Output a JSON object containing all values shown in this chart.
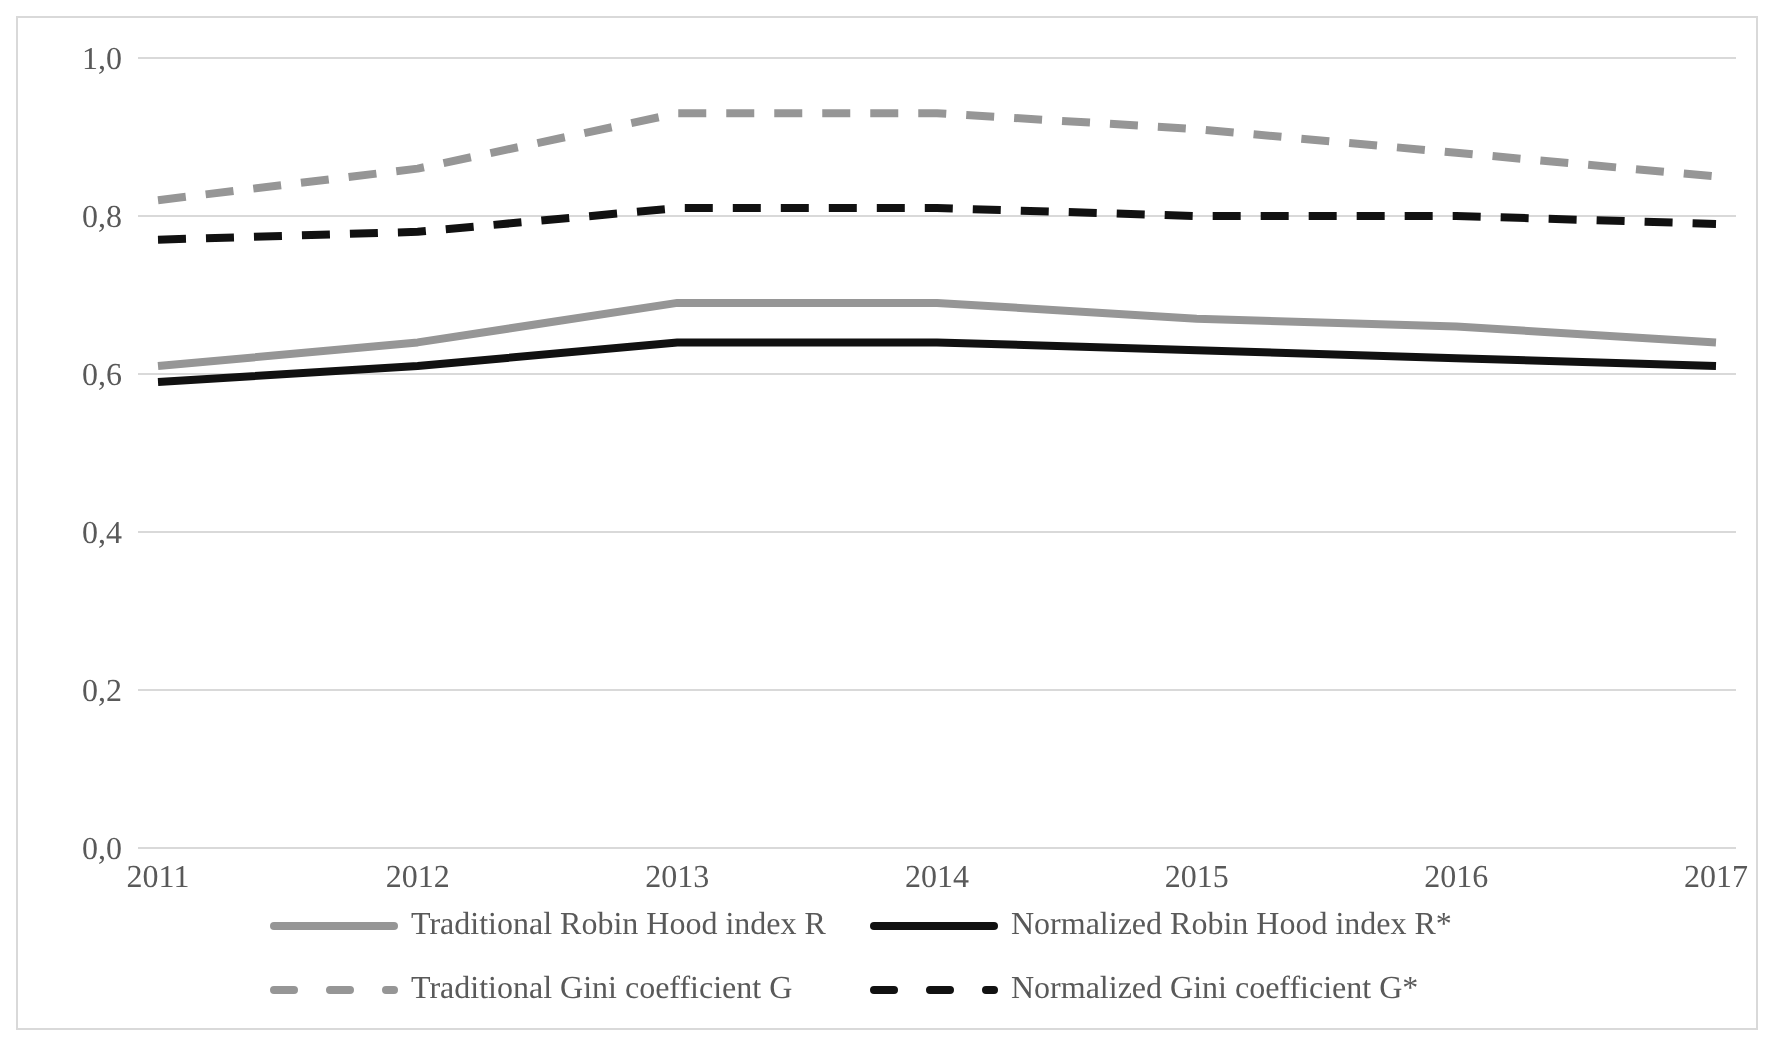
{
  "chart_data": {
    "type": "line",
    "categories": [
      "2011",
      "2012",
      "2013",
      "2014",
      "2015",
      "2016",
      "2017"
    ],
    "series": [
      {
        "name": "Traditional Robin Hood index R",
        "color": "#969696",
        "line_style": "solid",
        "values": [
          0.61,
          0.64,
          0.69,
          0.69,
          0.67,
          0.66,
          0.64
        ]
      },
      {
        "name": "Normalized Robin Hood index R*",
        "color": "#111111",
        "line_style": "solid",
        "values": [
          0.59,
          0.61,
          0.64,
          0.64,
          0.63,
          0.62,
          0.61
        ]
      },
      {
        "name": "Traditional Gini coefficient G",
        "color": "#969696",
        "line_style": "dashed",
        "values": [
          0.82,
          0.86,
          0.93,
          0.93,
          0.91,
          0.88,
          0.85
        ]
      },
      {
        "name": "Normalized Gini coefficient G*",
        "color": "#111111",
        "line_style": "dashed",
        "values": [
          0.77,
          0.78,
          0.81,
          0.81,
          0.8,
          0.8,
          0.79
        ]
      }
    ],
    "ylim": [
      0,
      1
    ],
    "yticks": [
      {
        "value": 0,
        "label": "0,0"
      },
      {
        "value": 0.2,
        "label": "0,2"
      },
      {
        "value": 0.4,
        "label": "0,4"
      },
      {
        "value": 0.6,
        "label": "0,6"
      },
      {
        "value": 0.8,
        "label": "0,8"
      },
      {
        "value": 1,
        "label": "1,0"
      }
    ],
    "grid": "y",
    "legend": "bottom",
    "marker": "none"
  }
}
